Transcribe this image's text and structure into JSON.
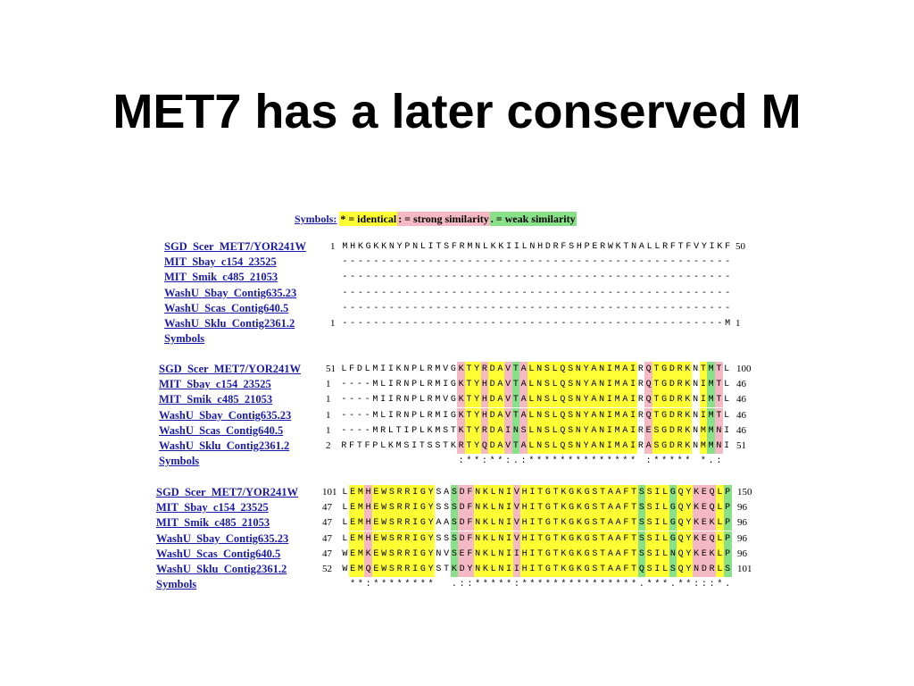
{
  "title": "MET7 has a later conserved M",
  "legend": {
    "lead": "Symbols:",
    "identical": "* = identical",
    "strong": ": = strong similarity",
    "weak": ". = weak similarity"
  },
  "colors": {
    "identical": "#ffff33",
    "strong": "#f5b8c5",
    "weak": "#88e088",
    "link": "#1a1aa8"
  },
  "symbols_label": "Symbols",
  "blocks": [
    {
      "rows": [
        {
          "name": "SGD_Scer_MET7/YOR241W",
          "start": "1",
          "seq": "MHKGKKNYPNLITSFRMNLKKIILNHDRFSHPERWKTNALLRFTFVYIKF",
          "end": "50"
        },
        {
          "name": "MIT_Sbay_c154_23525",
          "start": "",
          "seq": "--------------------------------------------------",
          "end": ""
        },
        {
          "name": "MIT_Smik_c485_21053",
          "start": "",
          "seq": "--------------------------------------------------",
          "end": ""
        },
        {
          "name": "WashU_Sbay_Contig635.23",
          "start": "",
          "seq": "--------------------------------------------------",
          "end": ""
        },
        {
          "name": "WashU_Scas_Contig640.5",
          "start": "",
          "seq": "--------------------------------------------------",
          "end": ""
        },
        {
          "name": "WashU_Sklu_Contig2361.2",
          "start": "1",
          "seq": "-------------------------------------------------M",
          "end": "1"
        }
      ],
      "symbols": ""
    },
    {
      "rows": [
        {
          "name": "SGD_Scer_MET7/YOR241W",
          "start": "51",
          "seq": "LFDLMIIKNPLRMVGKTYRDAVTALNSLQSNYANIMAIRQTGDRKNTMTL",
          "end": "100"
        },
        {
          "name": "MIT_Sbay_c154_23525",
          "start": "1",
          "seq": "----MLIRNPLRMIGKTYHDAVTALNSLQSNYANIMAIRQTGDRKNIMTL",
          "end": "46"
        },
        {
          "name": "MIT_Smik_c485_21053",
          "start": "1",
          "seq": "----MIIRNPLRMVGKTYHDAVTALNSLQSNYANIMAIRQTGDRKNIMTL",
          "end": "46"
        },
        {
          "name": "WashU_Sbay_Contig635.23",
          "start": "1",
          "seq": "----MLIRNPLRMIGKTYHDAVTALNSLQSNYANIMAIRQTGDRKNIMTL",
          "end": "46"
        },
        {
          "name": "WashU_Scas_Contig640.5",
          "start": "1",
          "seq": "----MRLTIPLKMSTKTYRDAINSLNSLQSNYANIMAIRESGDRKNMMNI",
          "end": "46"
        },
        {
          "name": "WashU_Sklu_Contig2361.2",
          "start": "2",
          "seq": "RFTFPLKMSITSSTKRTYQDAVTALNSLQSNYANIMAIRASGDRKNMMNI",
          "end": "51"
        }
      ],
      "symbols": "               :**:**:.:************** :***** *.:"
    },
    {
      "rows": [
        {
          "name": "SGD_Scer_MET7/YOR241W",
          "start": "101",
          "seq": "LEMHEWSRRIGYSASDFNKLNIVHITGTKGKGSTAAFTSSILGQYKEQLP",
          "end": "150"
        },
        {
          "name": "MIT_Sbay_c154_23525",
          "start": "47",
          "seq": "LEMHEWSRRIGYSSSDFNKLNIVHITGTKGKGSTAAFTSSILGQYKEQLP",
          "end": "96"
        },
        {
          "name": "MIT_Smik_c485_21053",
          "start": "47",
          "seq": "LEMHEWSRRIGYAASDFNKLNIVHITGTKGKGSTAAFTSSILGQYKEKLP",
          "end": "96"
        },
        {
          "name": "WashU_Sbay_Contig635.23",
          "start": "47",
          "seq": "LEMHEWSRRIGYSSSDFNKLNIVHITGTKGKGSTAAFTSSILGQYKEQLP",
          "end": "96"
        },
        {
          "name": "WashU_Scas_Contig640.5",
          "start": "47",
          "seq": "WEMKEWSRRIGYNVSEFNKLNIIHITGTKGKGSTAAFTSSILNQYKEKLP",
          "end": "96"
        },
        {
          "name": "WashU_Sklu_Contig2361.2",
          "start": "52",
          "seq": "WEMQEWSRRIGYSTKDYNKLNIIHITGTKGKGSTAAFTQSILSQYNDRLS",
          "end": "101"
        }
      ],
      "symbols": " **:********  .::*****:***************.***.**:::*."
    }
  ]
}
